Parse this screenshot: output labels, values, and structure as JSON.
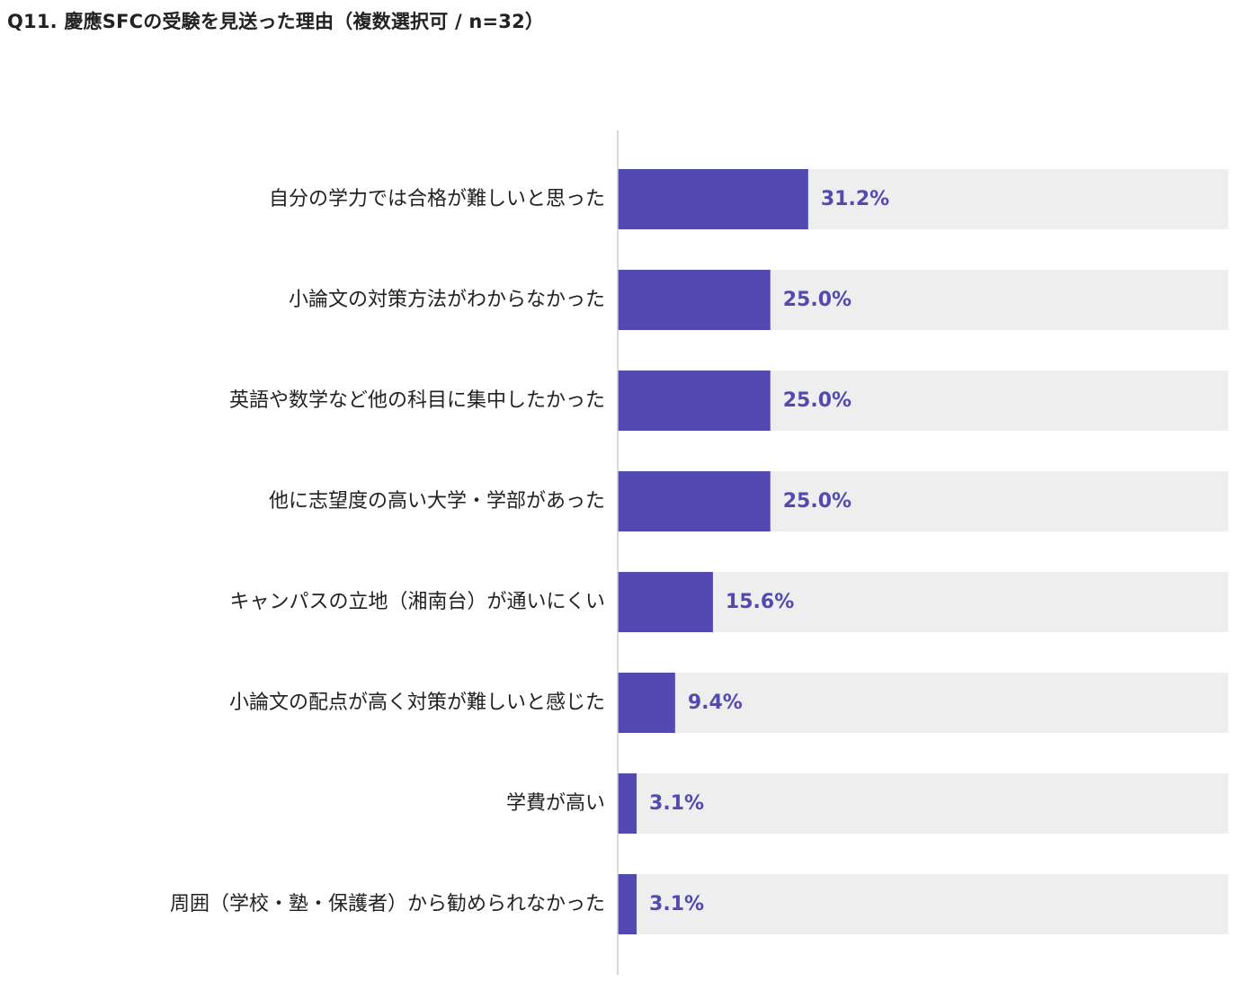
{
  "chart_data": {
    "type": "bar",
    "orientation": "horizontal",
    "title": "Q11.  慶應SFCの受験を見送った理由（複数選択可 / n=32）",
    "categories": [
      "自分の学力では合格が難しいと思った",
      "小論文の対策方法がわからなかった",
      "英語や数学など他の科目に集中したかった",
      "他に志望度の高い大学・学部があった",
      "キャンパスの立地（湘南台）が通いにくい",
      "小論文の配点が高く対策が難しいと感じた",
      "学費が高い",
      "周囲（学校・塾・保護者）から勧められなかった"
    ],
    "values": [
      31.2,
      25.0,
      25.0,
      25.0,
      15.6,
      9.4,
      3.1,
      3.1
    ],
    "value_labels": [
      "31.2%",
      "25.0%",
      "25.0%",
      "25.0%",
      "15.6%",
      "9.4%",
      "3.1%",
      "3.1%"
    ],
    "xlim": [
      0,
      100
    ],
    "unit": "%",
    "grid": false,
    "legend": "none",
    "colors": {
      "bar": "#524ab0",
      "track": "#eeeeee",
      "axis": "#cccccc",
      "value_text": "#524ab0",
      "label_text": "#222222"
    }
  }
}
